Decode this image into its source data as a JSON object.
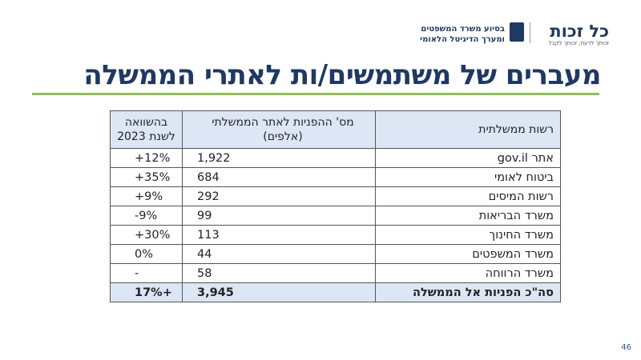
{
  "header": {
    "logo_name": "כל זכות",
    "logo_tagline": "זכותך לדעת, זכותך לקבל",
    "partner_line_1": "בסיוע משרד המשפטים",
    "partner_line_2": "ומערך הדיגיטל הלאומי"
  },
  "title": "מעברים של משתמשים/ות לאתרי הממשלה",
  "table": {
    "headers": [
      "רשות ממשלתית",
      "מס' ההפניות לאתר הממשלתי (אלפים)",
      "בהשוואה לשנת 2023"
    ],
    "rows": [
      [
        "אתר gov.il",
        "1,922",
        "+12%"
      ],
      [
        "ביטוח לאומי",
        "684",
        "+35%"
      ],
      [
        "רשות המיסים",
        "292",
        "+9%"
      ],
      [
        "משרד הבריאות",
        "99",
        "-9%"
      ],
      [
        "משרד החינוך",
        "113",
        "+30%"
      ],
      [
        "משרד המשפטים",
        "44",
        "0%"
      ],
      [
        "משרד הרווחה",
        "58",
        "-"
      ]
    ],
    "total": [
      "סה\"כ הפניות אל הממשלה",
      "3,945",
      "17%+"
    ]
  },
  "page_number": "46"
}
